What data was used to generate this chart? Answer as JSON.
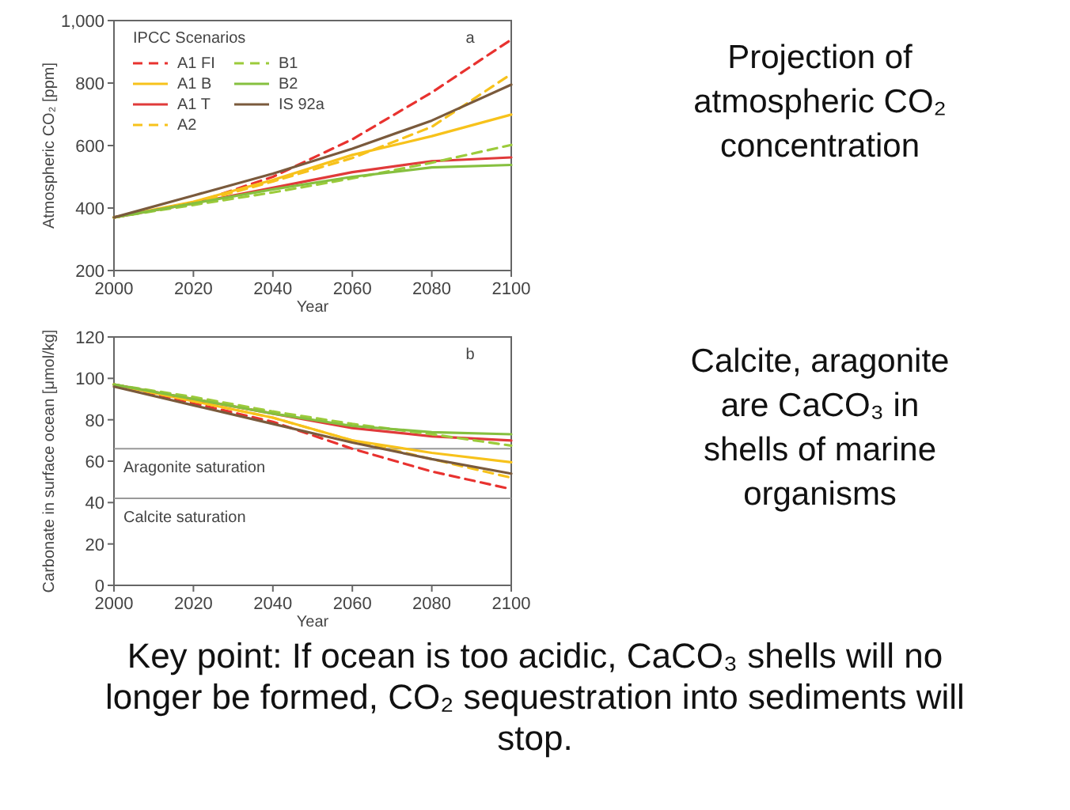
{
  "chart_data": [
    {
      "type": "line",
      "xlabel": "Year",
      "ylabel": "Atmospheric CO₂ [ppm]",
      "legend_title": "IPCC Scenarios",
      "legend": "top left",
      "grid": false,
      "x": [
        2000,
        2020,
        2040,
        2060,
        2080,
        2100
      ],
      "xlim": [
        2000,
        2100
      ],
      "xticks": [
        2000,
        2020,
        2040,
        2060,
        2080,
        2100
      ],
      "ylim": [
        200,
        1000
      ],
      "yticks": [
        200,
        400,
        600,
        800,
        {
          "value": 1000,
          "label": "1,000"
        }
      ],
      "annotations": [
        "a",
        "Projection of atmospheric CO₂ concentration"
      ],
      "series": [
        {
          "name": "A1 FI",
          "color": "#e8322f",
          "line_style": "dashed",
          "values": [
            370,
            415,
            500,
            620,
            770,
            939
          ]
        },
        {
          "name": "A1 B",
          "color": "#f7c21b",
          "line_style": "solid",
          "values": [
            370,
            420,
            490,
            570,
            630,
            699
          ]
        },
        {
          "name": "A1 T",
          "color": "#e03a3a",
          "line_style": "solid",
          "values": [
            370,
            415,
            465,
            515,
            550,
            562
          ]
        },
        {
          "name": "A2",
          "color": "#f7c21b",
          "line_style": "dashed",
          "values": [
            370,
            415,
            485,
            560,
            660,
            829
          ]
        },
        {
          "name": "B1",
          "color": "#9ccb3b",
          "line_style": "dashed",
          "values": [
            370,
            410,
            450,
            495,
            545,
            602
          ]
        },
        {
          "name": "B2",
          "color": "#86c03f",
          "line_style": "solid",
          "values": [
            370,
            415,
            460,
            500,
            530,
            538
          ]
        },
        {
          "name": "IS 92a",
          "color": "#7a5a3c",
          "line_style": "solid",
          "values": [
            370,
            440,
            510,
            590,
            680,
            795
          ]
        }
      ]
    },
    {
      "type": "line",
      "xlabel": "Year",
      "ylabel": "Carbonate in surface ocean [μmol/kg]",
      "legend": false,
      "grid": false,
      "x": [
        2000,
        2020,
        2040,
        2060,
        2080,
        2100
      ],
      "xlim": [
        2000,
        2100
      ],
      "xticks": [
        2000,
        2020,
        2040,
        2060,
        2080,
        2100
      ],
      "ylim": [
        0,
        120
      ],
      "yticks": [
        0,
        20,
        40,
        60,
        80,
        100,
        120
      ],
      "ref_lines": [
        {
          "axis": "y",
          "value": 66,
          "label": "Aragonite saturation",
          "color": "#999999"
        },
        {
          "axis": "y",
          "value": 42,
          "label": "Calcite saturation",
          "color": "#999999"
        }
      ],
      "annotations": [
        "b",
        "Calcite, aragonite are CaCO₃ in shells of marine organisms",
        "Key point: If ocean is too acidic, CaCO₃ shells will no longer be formed, CO₂ sequestration into sediments will stop."
      ],
      "series": [
        {
          "color": "#e8322f",
          "line_style": "dashed",
          "values": [
            97,
            88,
            79,
            66,
            55,
            46.5
          ]
        },
        {
          "color": "#f7c21b",
          "line_style": "solid",
          "values": [
            97,
            89,
            81,
            70,
            64,
            59.5
          ]
        },
        {
          "color": "#e03a3a",
          "line_style": "solid",
          "values": [
            97,
            90,
            83,
            76,
            72,
            70
          ]
        },
        {
          "color": "#f7c21b",
          "line_style": "dashed",
          "values": [
            97,
            89,
            81,
            70,
            61,
            52
          ]
        },
        {
          "color": "#9ccb3b",
          "line_style": "dashed",
          "values": [
            97,
            91,
            84,
            78,
            73,
            67.5
          ]
        },
        {
          "color": "#86c03f",
          "line_style": "solid",
          "values": [
            97,
            90,
            83,
            77,
            74,
            73
          ]
        },
        {
          "color": "#7a5a3c",
          "line_style": "solid",
          "values": [
            96,
            87,
            78,
            69,
            61,
            54
          ]
        }
      ]
    }
  ]
}
